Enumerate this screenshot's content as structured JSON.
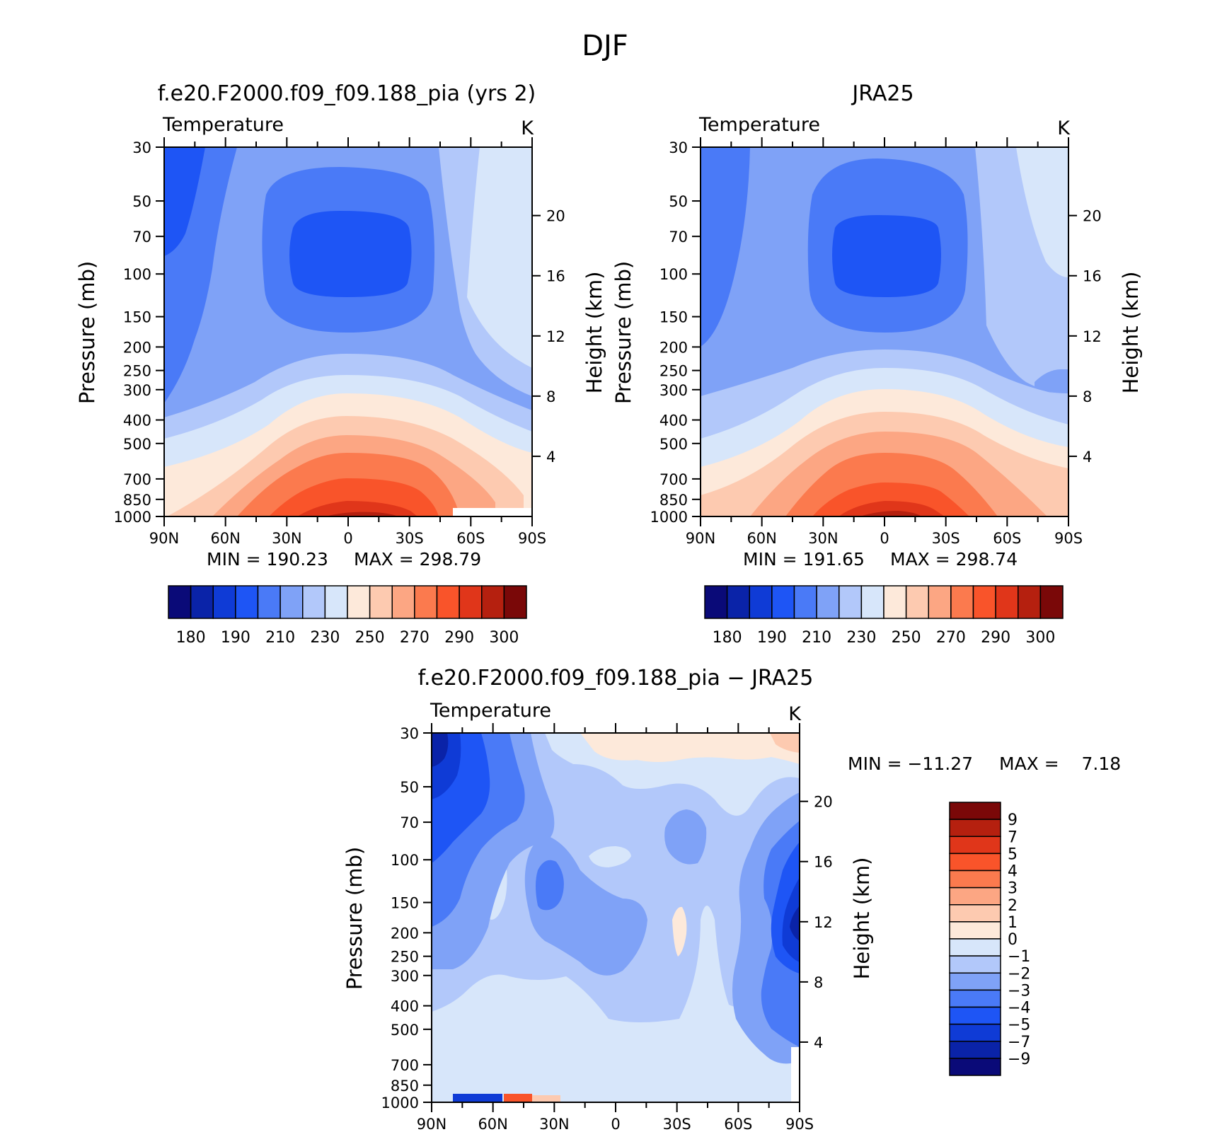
{
  "figure": {
    "title": "DJF",
    "panel_title_y_label": "Pressure (mb)",
    "right_axis_label": "Height (km)"
  },
  "chart_data": [
    {
      "type": "heatmap",
      "title": "f.e20.F2000.f09_f09.188_pia (yrs 2)",
      "left_string": "Temperature",
      "right_string": "K",
      "xlabel": "",
      "ylabel": "Pressure (mb)",
      "y2label": "Height (km)",
      "x_ticks": [
        "90N",
        "60N",
        "30N",
        "0",
        "30S",
        "60S",
        "90S"
      ],
      "y_ticks": [
        "30",
        "50",
        "70",
        "100",
        "150",
        "200",
        "250",
        "300",
        "400",
        "500",
        "700",
        "850",
        "1000"
      ],
      "y2_ticks": [
        "20",
        "16",
        "12",
        "8",
        "4"
      ],
      "xlim": [
        90,
        -90
      ],
      "ylim": [
        1000,
        30
      ],
      "y_scale": "log",
      "min_label": "MIN = 190.23",
      "max_label": "MAX = 298.79",
      "min": 190.23,
      "max": 298.79,
      "colorbar_labels": [
        "180",
        "190",
        "210",
        "230",
        "250",
        "270",
        "290",
        "300"
      ],
      "colorbar_orientation": "horizontal"
    },
    {
      "type": "heatmap",
      "title": "JRA25",
      "left_string": "Temperature",
      "right_string": "K",
      "xlabel": "",
      "ylabel": "Pressure (mb)",
      "y2label": "Height (km)",
      "x_ticks": [
        "90N",
        "60N",
        "30N",
        "0",
        "30S",
        "60S",
        "90S"
      ],
      "y_ticks": [
        "30",
        "50",
        "70",
        "100",
        "150",
        "200",
        "250",
        "300",
        "400",
        "500",
        "700",
        "850",
        "1000"
      ],
      "y2_ticks": [
        "20",
        "16",
        "12",
        "8",
        "4"
      ],
      "xlim": [
        90,
        -90
      ],
      "ylim": [
        1000,
        30
      ],
      "y_scale": "log",
      "min_label": "MIN = 191.65",
      "max_label": "MAX = 298.74",
      "min": 191.65,
      "max": 298.74,
      "colorbar_labels": [
        "180",
        "190",
        "210",
        "230",
        "250",
        "270",
        "290",
        "300"
      ],
      "colorbar_orientation": "horizontal"
    },
    {
      "type": "heatmap",
      "title": "f.e20.F2000.f09_f09.188_pia − JRA25",
      "left_string": "Temperature",
      "right_string": "K",
      "xlabel": "",
      "ylabel": "Pressure (mb)",
      "y2label": "Height (km)",
      "x_ticks": [
        "90N",
        "60N",
        "30N",
        "0",
        "30S",
        "60S",
        "90S"
      ],
      "y_ticks": [
        "30",
        "50",
        "70",
        "100",
        "150",
        "200",
        "250",
        "300",
        "400",
        "500",
        "700",
        "850",
        "1000"
      ],
      "y2_ticks": [
        "20",
        "16",
        "12",
        "8",
        "4"
      ],
      "xlim": [
        90,
        -90
      ],
      "ylim": [
        1000,
        30
      ],
      "y_scale": "log",
      "min_label": "MIN = −11.27",
      "max_label": "MAX =    7.18",
      "min": -11.27,
      "max": 7.18,
      "colorbar_labels": [
        "9",
        "7",
        "5",
        "4",
        "3",
        "2",
        "1",
        "0",
        "−1",
        "−2",
        "−3",
        "−4",
        "−5",
        "−7",
        "−9"
      ],
      "colorbar_orientation": "vertical"
    }
  ],
  "colors": {
    "temperature_scale": [
      "#0a0a78",
      "#0a23a8",
      "#0f3bd6",
      "#1e55f5",
      "#4a7af7",
      "#7fa2f7",
      "#b2c8fa",
      "#d7e6fa",
      "#fde9da",
      "#fdcab0",
      "#fca683",
      "#fb7a4e",
      "#f9542a",
      "#e0361a",
      "#b5200f",
      "#7a0808"
    ],
    "difference_scale_top_to_bottom": [
      "#7a0808",
      "#b5200f",
      "#e0361a",
      "#f9542a",
      "#fb7a4e",
      "#fca683",
      "#fdcab0",
      "#fde9da",
      "#d7e6fa",
      "#b2c8fa",
      "#7fa2f7",
      "#4a7af7",
      "#1e55f5",
      "#0f3bd6",
      "#0a23a8",
      "#0a0a78"
    ]
  }
}
